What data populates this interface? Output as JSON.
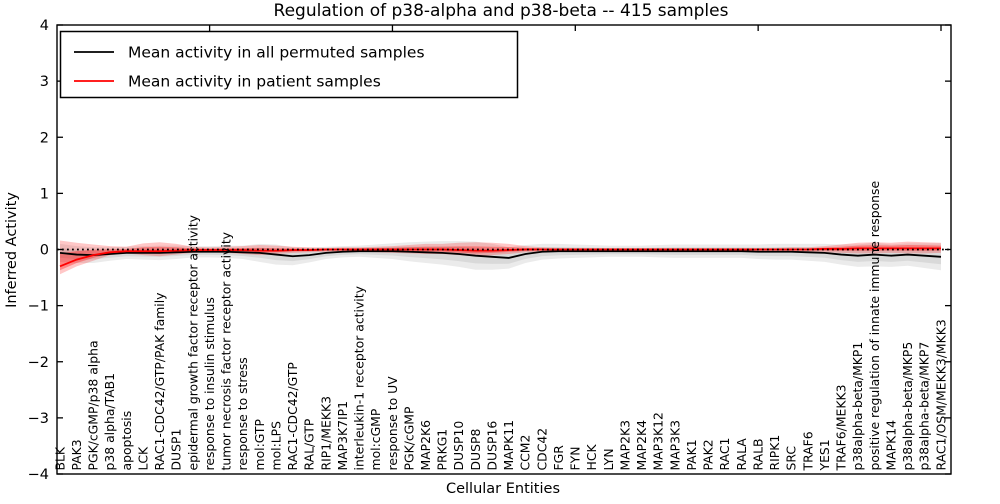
{
  "title": "Regulation of p38-alpha and p38-beta -- 415 samples",
  "axes": {
    "ylabel": "Inferred Activity",
    "xlabel": "Cellular Entities",
    "ytick_values": [
      4,
      3,
      2,
      1,
      0,
      -1,
      -2,
      -3,
      -4
    ],
    "ytick_labels": [
      "4",
      "3",
      "2",
      "1",
      "0",
      "−1",
      "−2",
      "−3",
      "−4"
    ]
  },
  "legend": {
    "position": "upper left"
  },
  "chart_data": {
    "type": "line",
    "title": "Regulation of p38-alpha and p38-beta -- 415 samples",
    "xlabel": "Cellular Entities",
    "ylabel": "Inferred Activity",
    "ylim": [
      -4,
      4
    ],
    "grid": false,
    "legend_position": "upper left",
    "reference_line": {
      "y": 0,
      "style": "dotted",
      "color": "#000000"
    },
    "categories": [
      "BLK",
      "PAK3",
      "PGK/cGMP/p38 alpha",
      "p38 alpha/TAB1",
      "apoptosis",
      "LCK",
      "RAC1-CDC42/GTP/PAK family",
      "DUSP1",
      "epidermal growth factor receptor activity",
      "response to insulin stimulus",
      "tumor necrosis factor receptor activity",
      "response to stress",
      "mol:GTP",
      "mol:LPS",
      "RAC1-CDC42/GTP",
      "RAL/GTP",
      "RIP1/MEKK3",
      "MAP3K7IP1",
      "interleukin-1 receptor activity",
      "mol:cGMP",
      "response to UV",
      "PGK/cGMP",
      "MAP2K6",
      "PRKG1",
      "DUSP10",
      "DUSP8",
      "DUSP16",
      "MAPK11",
      "CCM2",
      "CDC42",
      "FGR",
      "FYN",
      "HCK",
      "LYN",
      "MAP2K3",
      "MAP2K4",
      "MAP3K12",
      "MAP3K3",
      "PAK1",
      "PAK2",
      "RAC1",
      "RALA",
      "RALB",
      "RIPK1",
      "SRC",
      "TRAF6",
      "YES1",
      "TRAF6/MEKK3",
      "p38alpha-beta/MKP1",
      "positive regulation of innate immune response",
      "MAPK14",
      "p38alpha-beta/MKP5",
      "p38alpha-beta/MKP7",
      "RAC1/OSM/MEKK3/MKK3"
    ],
    "series": [
      {
        "name": "Mean activity in all permuted samples",
        "color": "#000000",
        "band_color": "#d9d9d9",
        "values": [
          -0.06,
          -0.09,
          -0.1,
          -0.08,
          -0.06,
          -0.06,
          -0.06,
          -0.05,
          -0.04,
          -0.04,
          -0.04,
          -0.05,
          -0.06,
          -0.09,
          -0.12,
          -0.1,
          -0.06,
          -0.04,
          -0.03,
          -0.03,
          -0.03,
          -0.04,
          -0.05,
          -0.06,
          -0.08,
          -0.11,
          -0.13,
          -0.15,
          -0.08,
          -0.04,
          -0.03,
          -0.03,
          -0.03,
          -0.03,
          -0.03,
          -0.03,
          -0.03,
          -0.03,
          -0.03,
          -0.03,
          -0.03,
          -0.03,
          -0.04,
          -0.04,
          -0.04,
          -0.05,
          -0.06,
          -0.09,
          -0.11,
          -0.09,
          -0.11,
          -0.09,
          -0.11,
          -0.13
        ],
        "band_upper": [
          0.1,
          0.06,
          0.04,
          0.04,
          0.05,
          0.06,
          0.07,
          0.07,
          0.06,
          0.06,
          0.07,
          0.07,
          0.1,
          0.09,
          0.04,
          0.03,
          0.05,
          0.06,
          0.07,
          0.09,
          0.11,
          0.13,
          0.14,
          0.15,
          0.15,
          0.14,
          0.1,
          0.04,
          0.08,
          0.1,
          0.1,
          0.09,
          0.08,
          0.07,
          0.07,
          0.07,
          0.08,
          0.09,
          0.09,
          0.09,
          0.09,
          0.09,
          0.09,
          0.1,
          0.1,
          0.1,
          0.1,
          0.09,
          0.09,
          0.12,
          0.09,
          0.11,
          0.11,
          0.11
        ],
        "band_lower": [
          -0.22,
          -0.24,
          -0.24,
          -0.2,
          -0.17,
          -0.18,
          -0.19,
          -0.17,
          -0.14,
          -0.14,
          -0.15,
          -0.17,
          -0.22,
          -0.27,
          -0.28,
          -0.23,
          -0.17,
          -0.14,
          -0.13,
          -0.15,
          -0.17,
          -0.21,
          -0.24,
          -0.27,
          -0.31,
          -0.36,
          -0.36,
          -0.34,
          -0.24,
          -0.18,
          -0.16,
          -0.15,
          -0.14,
          -0.13,
          -0.13,
          -0.13,
          -0.14,
          -0.15,
          -0.15,
          -0.15,
          -0.15,
          -0.15,
          -0.17,
          -0.18,
          -0.18,
          -0.2,
          -0.22,
          -0.27,
          -0.31,
          -0.3,
          -0.31,
          -0.29,
          -0.33,
          -0.37
        ]
      },
      {
        "name": "Mean activity in patient samples",
        "color": "#ff0000",
        "band_color": "#ff9999",
        "values": [
          -0.3,
          -0.18,
          -0.1,
          -0.05,
          -0.03,
          -0.03,
          -0.03,
          -0.02,
          -0.01,
          -0.01,
          -0.01,
          -0.01,
          -0.02,
          -0.02,
          -0.01,
          -0.01,
          0.0,
          0.0,
          0.0,
          0.0,
          0.0,
          0.0,
          0.0,
          0.0,
          -0.01,
          -0.02,
          -0.02,
          -0.01,
          0.0,
          0.0,
          0.0,
          0.0,
          0.0,
          0.0,
          0.0,
          0.0,
          0.0,
          0.0,
          0.0,
          0.0,
          0.0,
          0.0,
          0.0,
          0.0,
          0.0,
          0.0,
          0.01,
          0.01,
          0.02,
          0.02,
          0.02,
          0.02,
          0.02,
          0.02
        ],
        "band_upper": [
          0.16,
          0.12,
          0.09,
          0.06,
          0.05,
          0.11,
          0.13,
          0.1,
          0.05,
          0.04,
          0.05,
          0.06,
          0.08,
          0.07,
          0.05,
          0.04,
          0.03,
          0.04,
          0.04,
          0.05,
          0.06,
          0.08,
          0.1,
          0.1,
          0.12,
          0.13,
          0.12,
          0.1,
          0.06,
          0.04,
          0.03,
          0.03,
          0.03,
          0.03,
          0.03,
          0.03,
          0.03,
          0.03,
          0.03,
          0.03,
          0.03,
          0.03,
          0.03,
          0.03,
          0.04,
          0.04,
          0.06,
          0.09,
          0.12,
          0.13,
          0.12,
          0.14,
          0.13,
          0.12
        ],
        "band_lower": [
          -0.44,
          -0.3,
          -0.2,
          -0.1,
          -0.07,
          -0.1,
          -0.12,
          -0.09,
          -0.06,
          -0.05,
          -0.06,
          -0.08,
          -0.1,
          -0.08,
          -0.06,
          -0.05,
          -0.04,
          -0.04,
          -0.04,
          -0.05,
          -0.06,
          -0.07,
          -0.08,
          -0.08,
          -0.1,
          -0.12,
          -0.1,
          -0.08,
          -0.05,
          -0.04,
          -0.03,
          -0.03,
          -0.03,
          -0.03,
          -0.03,
          -0.03,
          -0.03,
          -0.03,
          -0.03,
          -0.03,
          -0.03,
          -0.03,
          -0.03,
          -0.03,
          -0.04,
          -0.04,
          -0.05,
          -0.06,
          -0.07,
          -0.07,
          -0.06,
          -0.07,
          -0.07,
          -0.06
        ]
      }
    ]
  }
}
